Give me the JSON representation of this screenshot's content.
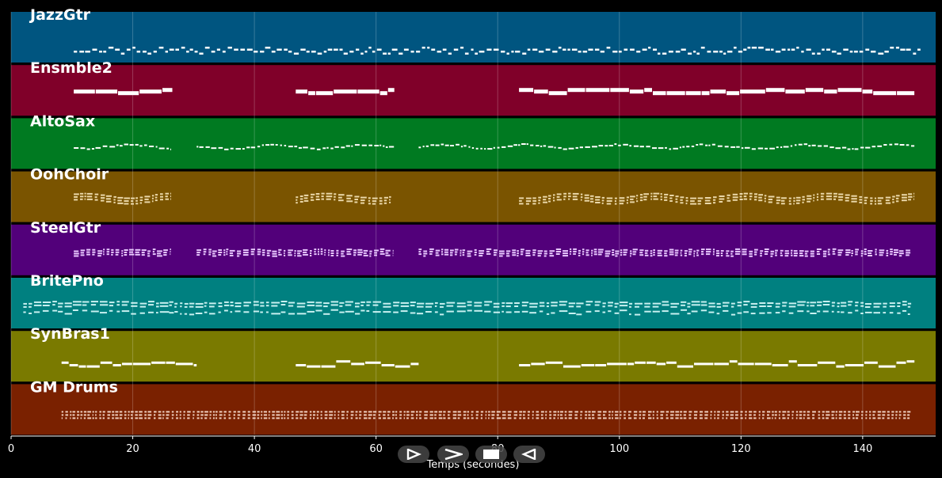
{
  "player": {
    "axis_label": "Temps (secondes)",
    "x_ticks": [
      0,
      20,
      40,
      60,
      80,
      100,
      120,
      140
    ],
    "x_range": [
      0,
      152
    ],
    "controls": [
      {
        "name": "play-button",
        "icon": "play-triangle-icon"
      },
      {
        "name": "next-button",
        "icon": "chevron-right-icon"
      },
      {
        "name": "stop-button",
        "icon": "stop-square-icon"
      },
      {
        "name": "prev-button",
        "icon": "triangle-left-icon"
      }
    ]
  },
  "tracks": [
    {
      "name": "JazzGtr",
      "color": "#005580",
      "note_color": "#ffffff",
      "style": "dots",
      "segments": [
        [
          10.3,
          149.5
        ]
      ]
    },
    {
      "name": "Ensmble2",
      "color": "#800029",
      "note_color": "#ffffff",
      "style": "thick",
      "segments": [
        [
          10.3,
          26.5
        ],
        [
          46.8,
          63.0
        ],
        [
          83.5,
          148.5
        ]
      ]
    },
    {
      "name": "AltoSax",
      "color": "#007a21",
      "note_color": "#ffffff",
      "style": "wave",
      "segments": [
        [
          10.3,
          26.2
        ],
        [
          30.5,
          63.0
        ],
        [
          67.0,
          148.5
        ]
      ]
    },
    {
      "name": "OohChoir",
      "color": "#7a5400",
      "note_color": "#ead7a8",
      "style": "chord",
      "segments": [
        [
          10.3,
          26.2
        ],
        [
          46.8,
          62.8
        ],
        [
          83.5,
          148.5
        ]
      ]
    },
    {
      "name": "SteelGtr",
      "color": "#52007a",
      "note_color": "#e8c8ff",
      "style": "strum",
      "segments": [
        [
          10.3,
          26.3
        ],
        [
          30.5,
          62.8
        ],
        [
          67.0,
          148.0
        ]
      ]
    },
    {
      "name": "BritePno",
      "color": "#008080",
      "note_color": "#c8f0f0",
      "style": "piano",
      "segments": [
        [
          2.0,
          148.0
        ]
      ]
    },
    {
      "name": "SynBras1",
      "color": "#7a7a00",
      "note_color": "#ffffff",
      "style": "lead",
      "segments": [
        [
          8.3,
          30.5
        ],
        [
          46.8,
          67.0
        ],
        [
          83.5,
          148.5
        ]
      ]
    },
    {
      "name": "GM Drums",
      "color": "#7a2100",
      "note_color": "#f0d0c0",
      "style": "drums",
      "segments": [
        [
          8.3,
          148.0
        ]
      ]
    }
  ]
}
